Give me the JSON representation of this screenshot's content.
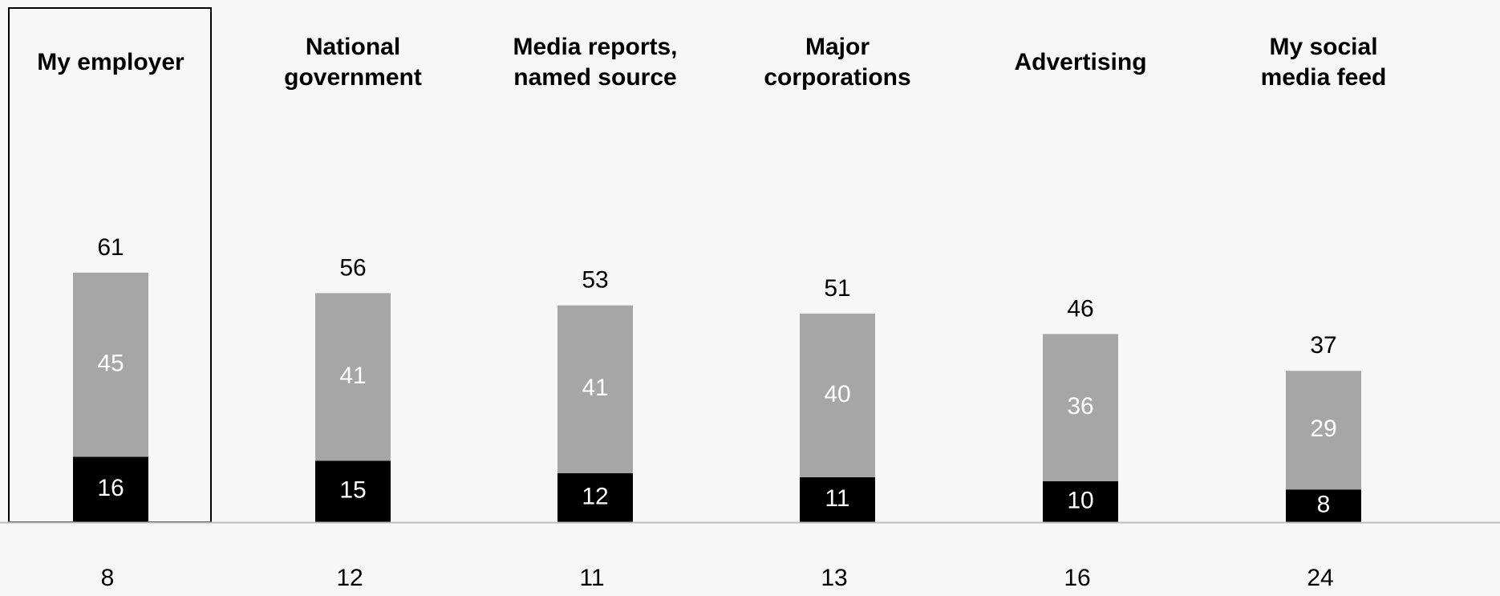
{
  "chart_data": {
    "type": "bar",
    "stacked": true,
    "categories": [
      "My employer",
      "National government",
      "Media reports, named source",
      "Major corporations",
      "Advertising",
      "My social media feed"
    ],
    "category_lines": [
      [
        "My employer"
      ],
      [
        "National",
        "government"
      ],
      [
        "Media reports,",
        "named source"
      ],
      [
        "Major",
        "corporations"
      ],
      [
        "Advertising"
      ],
      [
        "My social",
        "media feed"
      ]
    ],
    "series": [
      {
        "values": [
          16,
          15,
          12,
          11,
          10,
          8
        ]
      },
      {
        "values": [
          45,
          41,
          41,
          40,
          36,
          29
        ]
      }
    ],
    "totals": [
      61,
      56,
      53,
      51,
      46,
      37
    ],
    "bottom_values": [
      8,
      12,
      11,
      13,
      16,
      24
    ],
    "highlighted_category": "My employer",
    "ylim": [
      0,
      61
    ],
    "grid": false,
    "legend": "none",
    "colors": {
      "background": "#f7f7f7",
      "series": [
        "#000000",
        "#a6a6a6"
      ],
      "inner_label": "#ffffff",
      "text": "#000000",
      "baseline": "#bfbfbf",
      "highlight_border": "#000000"
    }
  }
}
